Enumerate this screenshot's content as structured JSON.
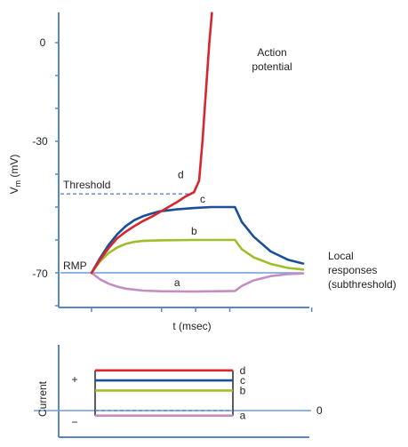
{
  "chart_data": [
    {
      "type": "line",
      "title": "",
      "xlabel": "t (msec)",
      "ylabel": {
        "main": "V",
        "sub": "m",
        "rest": " (mV)"
      },
      "ylim": [
        -79,
        9
      ],
      "yticks": [
        0,
        -30,
        -70
      ],
      "threshold_label": "Threshold",
      "threshold_mv": -46,
      "rmp_label": "RMP",
      "rmp_mv": -70,
      "annotations": {
        "action": [
          "Action",
          "potential"
        ],
        "local": [
          "Local",
          "responses",
          "(subthreshold)"
        ]
      },
      "series": [
        {
          "name": "d",
          "color": "#d7262f",
          "points": [
            [
              0,
              -70
            ],
            [
              0.5,
              -66
            ],
            [
              1,
              -62.5
            ],
            [
              1.5,
              -59.5
            ],
            [
              2,
              -57.5
            ],
            [
              2.5,
              -55.8
            ],
            [
              3,
              -54.3
            ],
            [
              3.5,
              -53
            ],
            [
              4,
              -51.5
            ],
            [
              4.5,
              -50
            ],
            [
              5,
              -48.5
            ],
            [
              5.5,
              -46.8
            ],
            [
              6,
              -45.5
            ],
            [
              6.3,
              -42
            ],
            [
              6.5,
              -30
            ],
            [
              6.7,
              -15
            ],
            [
              6.9,
              0
            ],
            [
              7.05,
              9
            ]
          ]
        },
        {
          "name": "c",
          "color": "#1a4f9a",
          "points": [
            [
              0,
              -70
            ],
            [
              0.5,
              -65.5
            ],
            [
              1,
              -61.5
            ],
            [
              1.5,
              -58.3
            ],
            [
              2,
              -55.8
            ],
            [
              2.5,
              -54
            ],
            [
              3,
              -52.8
            ],
            [
              3.5,
              -52
            ],
            [
              4,
              -51.3
            ],
            [
              5,
              -50.7
            ],
            [
              6,
              -50.3
            ],
            [
              7,
              -50
            ],
            [
              8,
              -50
            ],
            [
              8.4,
              -50
            ],
            [
              8.8,
              -54.5
            ],
            [
              9.5,
              -59
            ],
            [
              10.5,
              -63.5
            ],
            [
              11.5,
              -66
            ],
            [
              12.4,
              -67.2
            ]
          ]
        },
        {
          "name": "b",
          "color": "#9ebf2a",
          "points": [
            [
              0,
              -70
            ],
            [
              0.5,
              -66.5
            ],
            [
              1,
              -64
            ],
            [
              1.5,
              -62.3
            ],
            [
              2,
              -61.2
            ],
            [
              2.5,
              -60.6
            ],
            [
              3,
              -60.3
            ],
            [
              4,
              -60.1
            ],
            [
              6,
              -60
            ],
            [
              8.4,
              -60
            ],
            [
              8.8,
              -62.8
            ],
            [
              9.5,
              -65.3
            ],
            [
              10.5,
              -67.3
            ],
            [
              11.5,
              -68.5
            ],
            [
              12.4,
              -69
            ]
          ]
        },
        {
          "name": "a",
          "color": "#c58ec3",
          "points": [
            [
              0,
              -70
            ],
            [
              0.5,
              -72
            ],
            [
              1,
              -73.3
            ],
            [
              1.5,
              -74.2
            ],
            [
              2,
              -74.8
            ],
            [
              3,
              -75.4
            ],
            [
              4,
              -75.6
            ],
            [
              6,
              -75.7
            ],
            [
              8.4,
              -75.5
            ],
            [
              8.8,
              -74
            ],
            [
              9.5,
              -72.3
            ],
            [
              10.5,
              -71
            ],
            [
              11.5,
              -70.4
            ],
            [
              12.4,
              -70.2
            ]
          ]
        }
      ]
    },
    {
      "type": "line",
      "ylabel": "Current",
      "plus_label": "+",
      "minus_label": "−",
      "zero_label": "0",
      "steps": [
        {
          "name": "d",
          "color": "#d7262f",
          "level": 4
        },
        {
          "name": "c",
          "color": "#1a4f9a",
          "level": 3
        },
        {
          "name": "b",
          "color": "#9ebf2a",
          "level": 2
        },
        {
          "name": "a",
          "color": "#c58ec3",
          "level": -0.5
        }
      ]
    }
  ],
  "colors": {
    "axis": "#5a86c6",
    "rmp_line": "#6f9bd6",
    "threshold_dash": "#5a86c6",
    "step_edge": "#333333"
  }
}
